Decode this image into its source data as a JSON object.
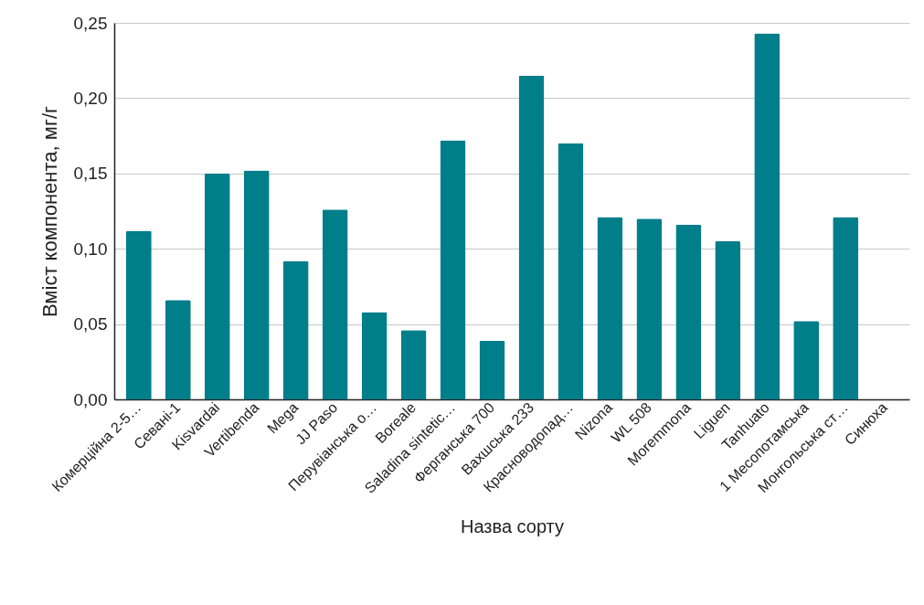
{
  "chart_data": {
    "type": "bar",
    "xlabel": "Назва сорту",
    "ylabel": "Вміст компонента, мг/г",
    "categories": [
      "Комерційна 2-5…",
      "Севані-1",
      "Kisvardai",
      "Vertibenda",
      "Mega",
      "JJ Paso",
      "Перувіанська о…",
      "Boreale",
      "Saladina sintetic…",
      "Ферганська 700",
      "Вахшська 233",
      "Красноводопад…",
      "Nizona",
      "WL 508",
      "Moremmona",
      "Liguen",
      "Tanhuato",
      "1 Месопотамська",
      "Монгольська ст…",
      "Синюха"
    ],
    "values": [
      0.112,
      0.066,
      0.15,
      0.152,
      0.092,
      0.126,
      0.058,
      0.046,
      0.172,
      0.039,
      0.215,
      0.17,
      0.121,
      0.12,
      0.116,
      0.105,
      0.243,
      0.052,
      0.121,
      0
    ],
    "color": "#007e8a",
    "ylim": [
      0,
      0.25
    ],
    "yticks": [
      {
        "value": 0,
        "label": "0,00"
      },
      {
        "value": 0.05,
        "label": "0,05"
      },
      {
        "value": 0.1,
        "label": "0,10"
      },
      {
        "value": 0.15,
        "label": "0,15"
      },
      {
        "value": 0.2,
        "label": "0,20"
      },
      {
        "value": 0.25,
        "label": "0,25"
      }
    ],
    "grid": "y"
  }
}
